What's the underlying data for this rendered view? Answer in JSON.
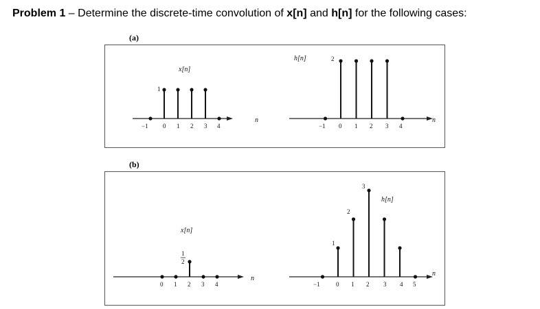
{
  "problem": {
    "prefix": "Problem 1",
    "dash": " – Determine the discrete-time convolution of ",
    "x": "x[n]",
    "and": " and ",
    "h": "h[n]",
    "suffix": " for the following cases:"
  },
  "parts": [
    {
      "label": "(a)",
      "x_plot": {
        "label": "x[n]",
        "axis_label": "n",
        "ticks": [
          "−1",
          "0",
          "1",
          "2",
          "3",
          "4"
        ],
        "value_label": "1",
        "stems": [
          {
            "n": -1,
            "v": 0
          },
          {
            "n": 0,
            "v": 1
          },
          {
            "n": 1,
            "v": 1
          },
          {
            "n": 2,
            "v": 1
          },
          {
            "n": 3,
            "v": 1
          },
          {
            "n": 4,
            "v": 0
          }
        ]
      },
      "h_plot": {
        "label": "h[n]",
        "axis_label": "n",
        "ticks": [
          "−1",
          "0",
          "1",
          "2",
          "3",
          "4"
        ],
        "value_label": "2",
        "stems": [
          {
            "n": -1,
            "v": 0
          },
          {
            "n": 0,
            "v": 2
          },
          {
            "n": 1,
            "v": 2
          },
          {
            "n": 2,
            "v": 2
          },
          {
            "n": 3,
            "v": 2
          },
          {
            "n": 4,
            "v": 0
          }
        ]
      }
    },
    {
      "label": "(b)",
      "x_plot": {
        "label": "x[n]",
        "axis_label": "n",
        "ticks": [
          "0",
          "1",
          "2",
          "3",
          "4"
        ],
        "value_num": "1",
        "value_den": "2",
        "stems": [
          {
            "n": 0,
            "v": 0
          },
          {
            "n": 1,
            "v": 0
          },
          {
            "n": 2,
            "v": 0.5
          },
          {
            "n": 3,
            "v": 0
          },
          {
            "n": 4,
            "v": 0
          }
        ]
      },
      "h_plot": {
        "label": "h[n]",
        "axis_label": "n",
        "ticks": [
          "−1",
          "0",
          "1",
          "2",
          "3",
          "4",
          "5"
        ],
        "value_labels": [
          "1",
          "2",
          "3"
        ],
        "stems": [
          {
            "n": -1,
            "v": 0
          },
          {
            "n": 0,
            "v": 1
          },
          {
            "n": 1,
            "v": 2
          },
          {
            "n": 2,
            "v": 3
          },
          {
            "n": 3,
            "v": 2
          },
          {
            "n": 4,
            "v": 1
          },
          {
            "n": 5,
            "v": 0
          }
        ]
      }
    }
  ]
}
